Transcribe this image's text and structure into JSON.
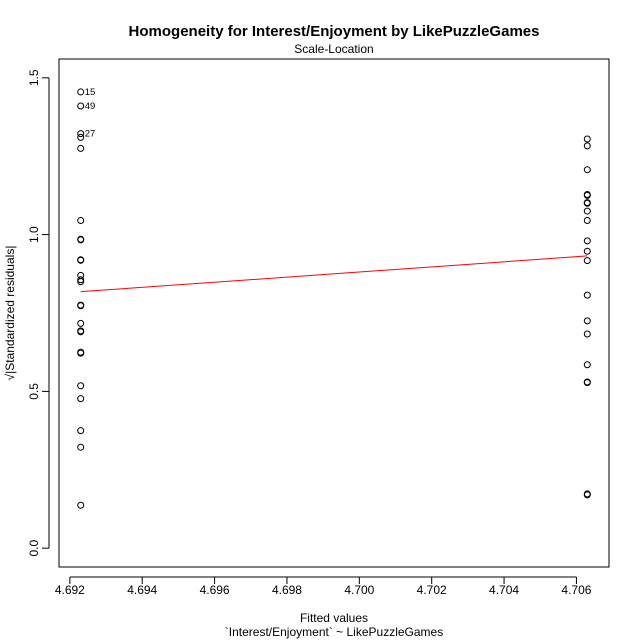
{
  "chart_data": {
    "type": "scatter",
    "title": "Homogeneity for Interest/Enjoyment by LikePuzzleGames",
    "subtitle": "Scale-Location",
    "xlabel": "Fitted values",
    "xlabel2": "`Interest/Enjoyment` ~ LikePuzzleGames",
    "ylabel": "√|Standardized residuals|",
    "xlim": [
      4.6917,
      4.7069
    ],
    "ylim": [
      -0.06,
      1.56
    ],
    "xticks": [
      4.692,
      4.694,
      4.696,
      4.698,
      4.7,
      4.702,
      4.704,
      4.706
    ],
    "xtick_labels": [
      "4.692",
      "4.694",
      "4.696",
      "4.698",
      "4.700",
      "4.702",
      "4.704",
      "4.706"
    ],
    "yticks": [
      0.0,
      0.5,
      1.0,
      1.5
    ],
    "ytick_labels": [
      "0.0",
      "0.5",
      "1.0",
      "1.5"
    ],
    "grid": false,
    "groups": [
      {
        "x": 4.6923,
        "y": [
          1.455,
          1.41,
          1.322,
          1.31,
          1.275,
          1.045,
          0.985,
          0.983,
          0.92,
          0.918,
          0.87,
          0.856,
          0.85,
          0.775,
          0.773,
          0.717,
          0.693,
          0.69,
          0.625,
          0.622,
          0.518,
          0.477,
          0.375,
          0.322,
          0.137
        ]
      },
      {
        "x": 4.7063,
        "y": [
          1.305,
          1.283,
          1.207,
          1.128,
          1.125,
          1.102,
          1.1,
          1.075,
          1.045,
          0.98,
          0.947,
          0.917,
          0.807,
          0.725,
          0.683,
          0.585,
          0.53,
          0.528,
          0.173,
          0.17
        ]
      }
    ],
    "point_labels": [
      {
        "text": "15",
        "x": 4.6923,
        "y": 1.455
      },
      {
        "text": "49",
        "x": 4.6923,
        "y": 1.41
      },
      {
        "text": "27",
        "x": 4.6923,
        "y": 1.322
      }
    ],
    "smooth_line": {
      "x": [
        4.6923,
        4.7063
      ],
      "y": [
        0.818,
        0.932
      ],
      "color": "#ff0000"
    },
    "point_color": "#000000"
  }
}
